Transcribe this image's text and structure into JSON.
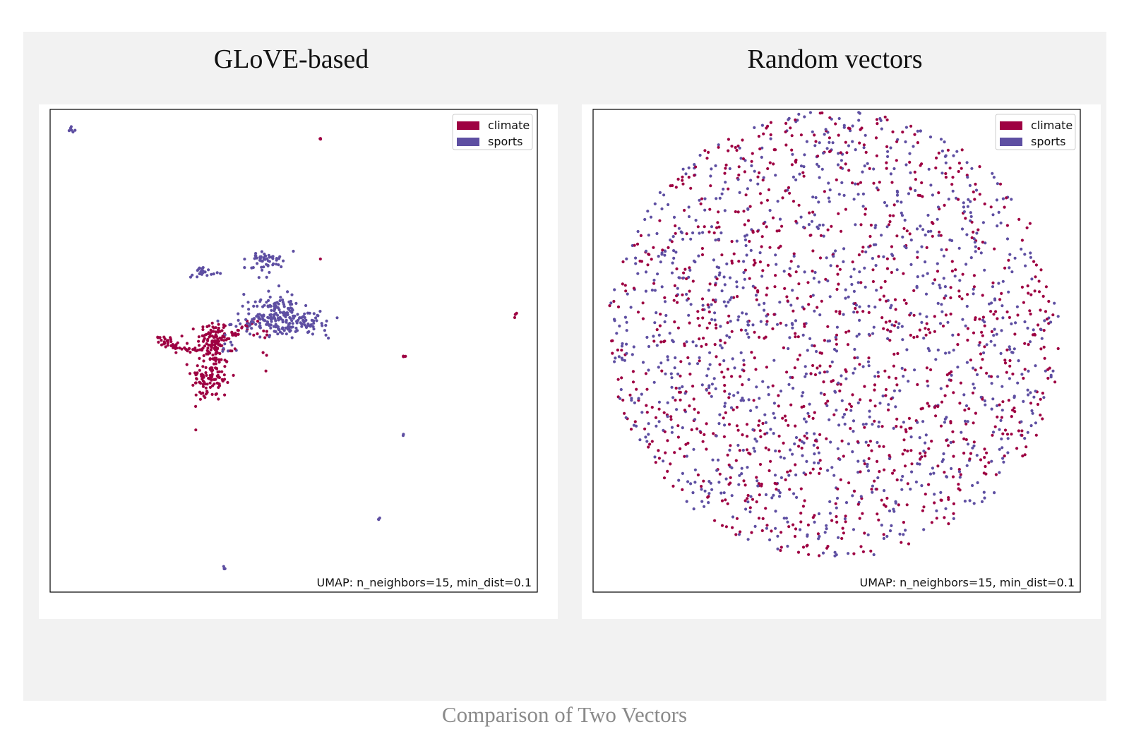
{
  "caption": "Comparison of Two Vectors",
  "colors": {
    "climate": "#9e0142",
    "sports": "#5e4fa2"
  },
  "chart_data": [
    {
      "type": "scatter",
      "title": "GLoVE-based",
      "xlabel": "",
      "ylabel": "",
      "xlim": [
        0,
        100
      ],
      "ylim": [
        0,
        100
      ],
      "legend": {
        "placement": "top-right",
        "entries": [
          "climate",
          "sports"
        ]
      },
      "annotation": "UMAP: n_neighbors=15, min_dist=0.1",
      "grid": false,
      "series": [
        {
          "name": "climate",
          "clusters": [
            {
              "kind": "cloud",
              "cx": 33.5,
              "cy": 52,
              "rx": 1.6,
              "ry": 2.2,
              "n": 110
            },
            {
              "kind": "cloud",
              "cx": 33.0,
              "cy": 44.5,
              "rx": 2.0,
              "ry": 2.6,
              "n": 110
            },
            {
              "kind": "line",
              "x1": 22.0,
              "y1": 52.5,
              "x2": 30.5,
              "y2": 49.5,
              "n": 50,
              "jitter": 0.5
            },
            {
              "kind": "line",
              "x1": 33.0,
              "y1": 50.5,
              "x2": 39.0,
              "y2": 54.5,
              "n": 25,
              "jitter": 0.4
            },
            {
              "kind": "line",
              "x1": 39.0,
              "y1": 54.5,
              "x2": 42.0,
              "y2": 56.0,
              "n": 12,
              "jitter": 0.5
            },
            {
              "kind": "cloud",
              "cx": 43.5,
              "cy": 52.5,
              "rx": 1.0,
              "ry": 1.0,
              "n": 6
            },
            {
              "kind": "cloud",
              "cx": 43.8,
              "cy": 49.5,
              "rx": 0.3,
              "ry": 0.3,
              "n": 2
            },
            {
              "kind": "cloud",
              "cx": 31.2,
              "cy": 41.0,
              "rx": 0.3,
              "ry": 0.3,
              "n": 2
            },
            {
              "kind": "cloud",
              "cx": 37.0,
              "cy": 50.0,
              "rx": 0.3,
              "ry": 0.3,
              "n": 2
            },
            {
              "kind": "cloud",
              "cx": 44.0,
              "cy": 46.0,
              "rx": 0.3,
              "ry": 0.3,
              "n": 1
            },
            {
              "kind": "cloud",
              "cx": 55.5,
              "cy": 93.8,
              "rx": 0.2,
              "ry": 0.2,
              "n": 3
            },
            {
              "kind": "cloud",
              "cx": 55.4,
              "cy": 69.0,
              "rx": 0.1,
              "ry": 0.1,
              "n": 1
            },
            {
              "kind": "cloud",
              "cx": 95.5,
              "cy": 57.5,
              "rx": 0.3,
              "ry": 0.2,
              "n": 3
            },
            {
              "kind": "cloud",
              "cx": 72.5,
              "cy": 49.0,
              "rx": 0.4,
              "ry": 0.3,
              "n": 4
            }
          ]
        },
        {
          "name": "sports",
          "clusters": [
            {
              "kind": "cloud",
              "cx": 46.0,
              "cy": 57.5,
              "rx": 3.2,
              "ry": 2.2,
              "n": 140
            },
            {
              "kind": "cloud",
              "cx": 50.5,
              "cy": 56.0,
              "rx": 4.2,
              "ry": 1.6,
              "n": 90
            },
            {
              "kind": "line",
              "x1": 37.0,
              "y1": 55.0,
              "x2": 42.0,
              "y2": 56.5,
              "n": 14,
              "jitter": 0.5
            },
            {
              "kind": "cloud",
              "cx": 44.5,
              "cy": 68.5,
              "rx": 1.8,
              "ry": 1.1,
              "n": 55
            },
            {
              "kind": "cloud",
              "cx": 31.5,
              "cy": 66.0,
              "rx": 1.3,
              "ry": 0.4,
              "n": 22
            },
            {
              "kind": "cloud",
              "cx": 4.7,
              "cy": 95.8,
              "rx": 0.3,
              "ry": 0.3,
              "n": 6
            },
            {
              "kind": "cloud",
              "cx": 72.5,
              "cy": 32.5,
              "rx": 0.15,
              "ry": 0.15,
              "n": 2
            },
            {
              "kind": "cloud",
              "cx": 67.5,
              "cy": 15.0,
              "rx": 0.2,
              "ry": 0.2,
              "n": 3
            },
            {
              "kind": "cloud",
              "cx": 35.5,
              "cy": 4.8,
              "rx": 0.2,
              "ry": 0.2,
              "n": 3
            },
            {
              "kind": "cloud",
              "cx": 37.0,
              "cy": 51.0,
              "rx": 1.5,
              "ry": 1.0,
              "n": 8
            }
          ]
        }
      ]
    },
    {
      "type": "scatter",
      "title": "Random vectors",
      "xlabel": "",
      "ylabel": "",
      "xlim": [
        0,
        100
      ],
      "ylim": [
        0,
        100
      ],
      "legend": {
        "placement": "top-right",
        "entries": [
          "climate",
          "sports"
        ]
      },
      "annotation": "UMAP: n_neighbors=15, min_dist=0.1",
      "grid": false,
      "series": [
        {
          "name": "climate",
          "distribution": {
            "kind": "disk",
            "cx": 49.5,
            "cy": 53.5,
            "r": 46.5,
            "n": 1050
          }
        },
        {
          "name": "sports",
          "distribution": {
            "kind": "disk",
            "cx": 49.5,
            "cy": 53.5,
            "r": 46.5,
            "n": 1050
          }
        }
      ]
    }
  ]
}
